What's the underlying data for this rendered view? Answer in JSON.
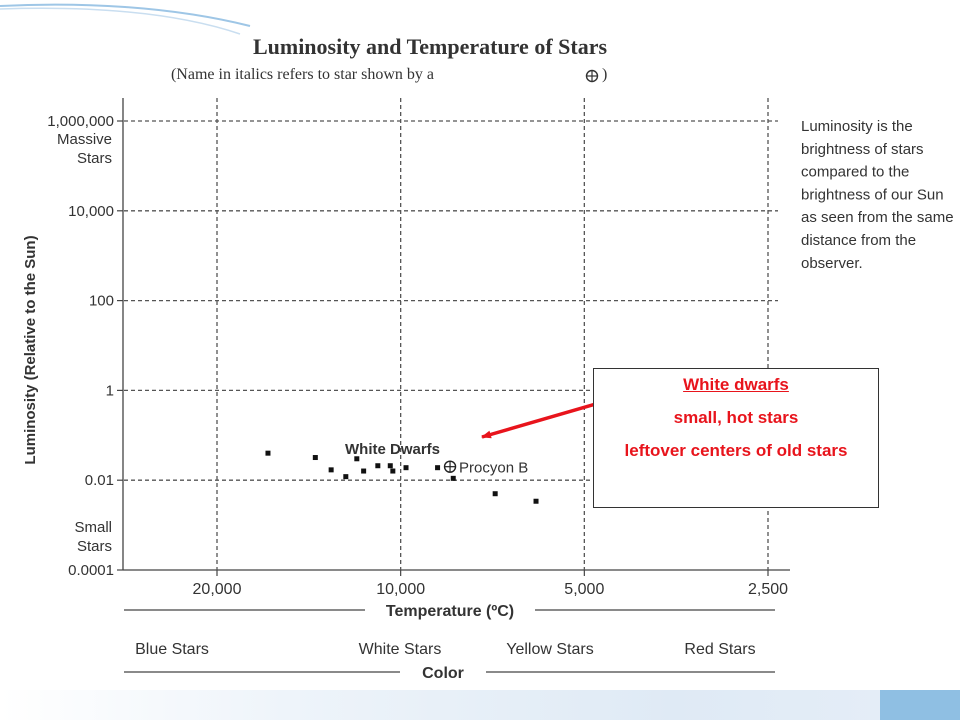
{
  "theme": {
    "accent_red": "#e8141c",
    "text_gray": "#333333",
    "accent_blue": "#8fbfe3"
  },
  "chart_data": {
    "type": "scatter",
    "title": "Luminosity and Temperature of Stars",
    "subtitle": "(Name in italics refers to star shown by a ",
    "subtitle_end": ")",
    "subtitle_symbol": "circle-plus-icon",
    "xlabel": "Temperature (ºC)",
    "ylabel": "Luminosity (Relative to the Sun)",
    "x_scale": "log",
    "x_reversed": true,
    "y_scale": "log",
    "xlim": [
      40000,
      2500
    ],
    "ylim": [
      0.0001,
      1000000
    ],
    "grid": true,
    "grid_style": "dashed",
    "x_ticks": [
      {
        "value": 20000,
        "label": "20,000"
      },
      {
        "value": 10000,
        "label": "10,000"
      },
      {
        "value": 5000,
        "label": "5,000"
      },
      {
        "value": 2500,
        "label": "2,500"
      }
    ],
    "y_ticks": [
      {
        "value": 1000000,
        "label": "1,000,000"
      },
      {
        "value": 10000,
        "label": "10,000"
      },
      {
        "value": 100,
        "label": "100"
      },
      {
        "value": 1,
        "label": "1"
      },
      {
        "value": 0.01,
        "label": "0.01"
      },
      {
        "value": 0.0001,
        "label": "0.0001"
      }
    ],
    "y_annotations": [
      {
        "lines": [
          "Massive",
          "Stars"
        ],
        "value": 1000000
      },
      {
        "lines": [
          "Small",
          "Stars"
        ],
        "value": 0.0001
      }
    ],
    "color_bands": [
      {
        "label": "Blue Stars",
        "x": 30000
      },
      {
        "label": "White Stars",
        "x": 10000
      },
      {
        "label": "Yellow Stars",
        "x": 5000
      },
      {
        "label": "Red Stars",
        "x": 2800
      }
    ],
    "color_axis_label": "Color",
    "series": [
      {
        "name": "White Dwarfs",
        "points": [
          {
            "x": 16500,
            "y": 0.04
          },
          {
            "x": 13800,
            "y": 0.032
          },
          {
            "x": 13000,
            "y": 0.017
          },
          {
            "x": 12300,
            "y": 0.012
          },
          {
            "x": 11800,
            "y": 0.03
          },
          {
            "x": 11500,
            "y": 0.016
          },
          {
            "x": 10900,
            "y": 0.021
          },
          {
            "x": 10400,
            "y": 0.021
          },
          {
            "x": 10300,
            "y": 0.016
          },
          {
            "x": 9800,
            "y": 0.019
          },
          {
            "x": 8700,
            "y": 0.019
          },
          {
            "x": 8200,
            "y": 0.011
          },
          {
            "x": 7000,
            "y": 0.005
          },
          {
            "x": 6000,
            "y": 0.0034
          }
        ]
      }
    ],
    "highlighted_star": {
      "label": "Procyon B",
      "x": 8300,
      "y": 0.02
    },
    "annotations": [
      "Luminosity is the brightness of stars compared to the brightness of our Sun as seen from the same distance from the observer."
    ]
  },
  "callout": {
    "title": "White dwarfs",
    "line1": "small, hot stars",
    "line2": "leftover centers of old stars"
  }
}
